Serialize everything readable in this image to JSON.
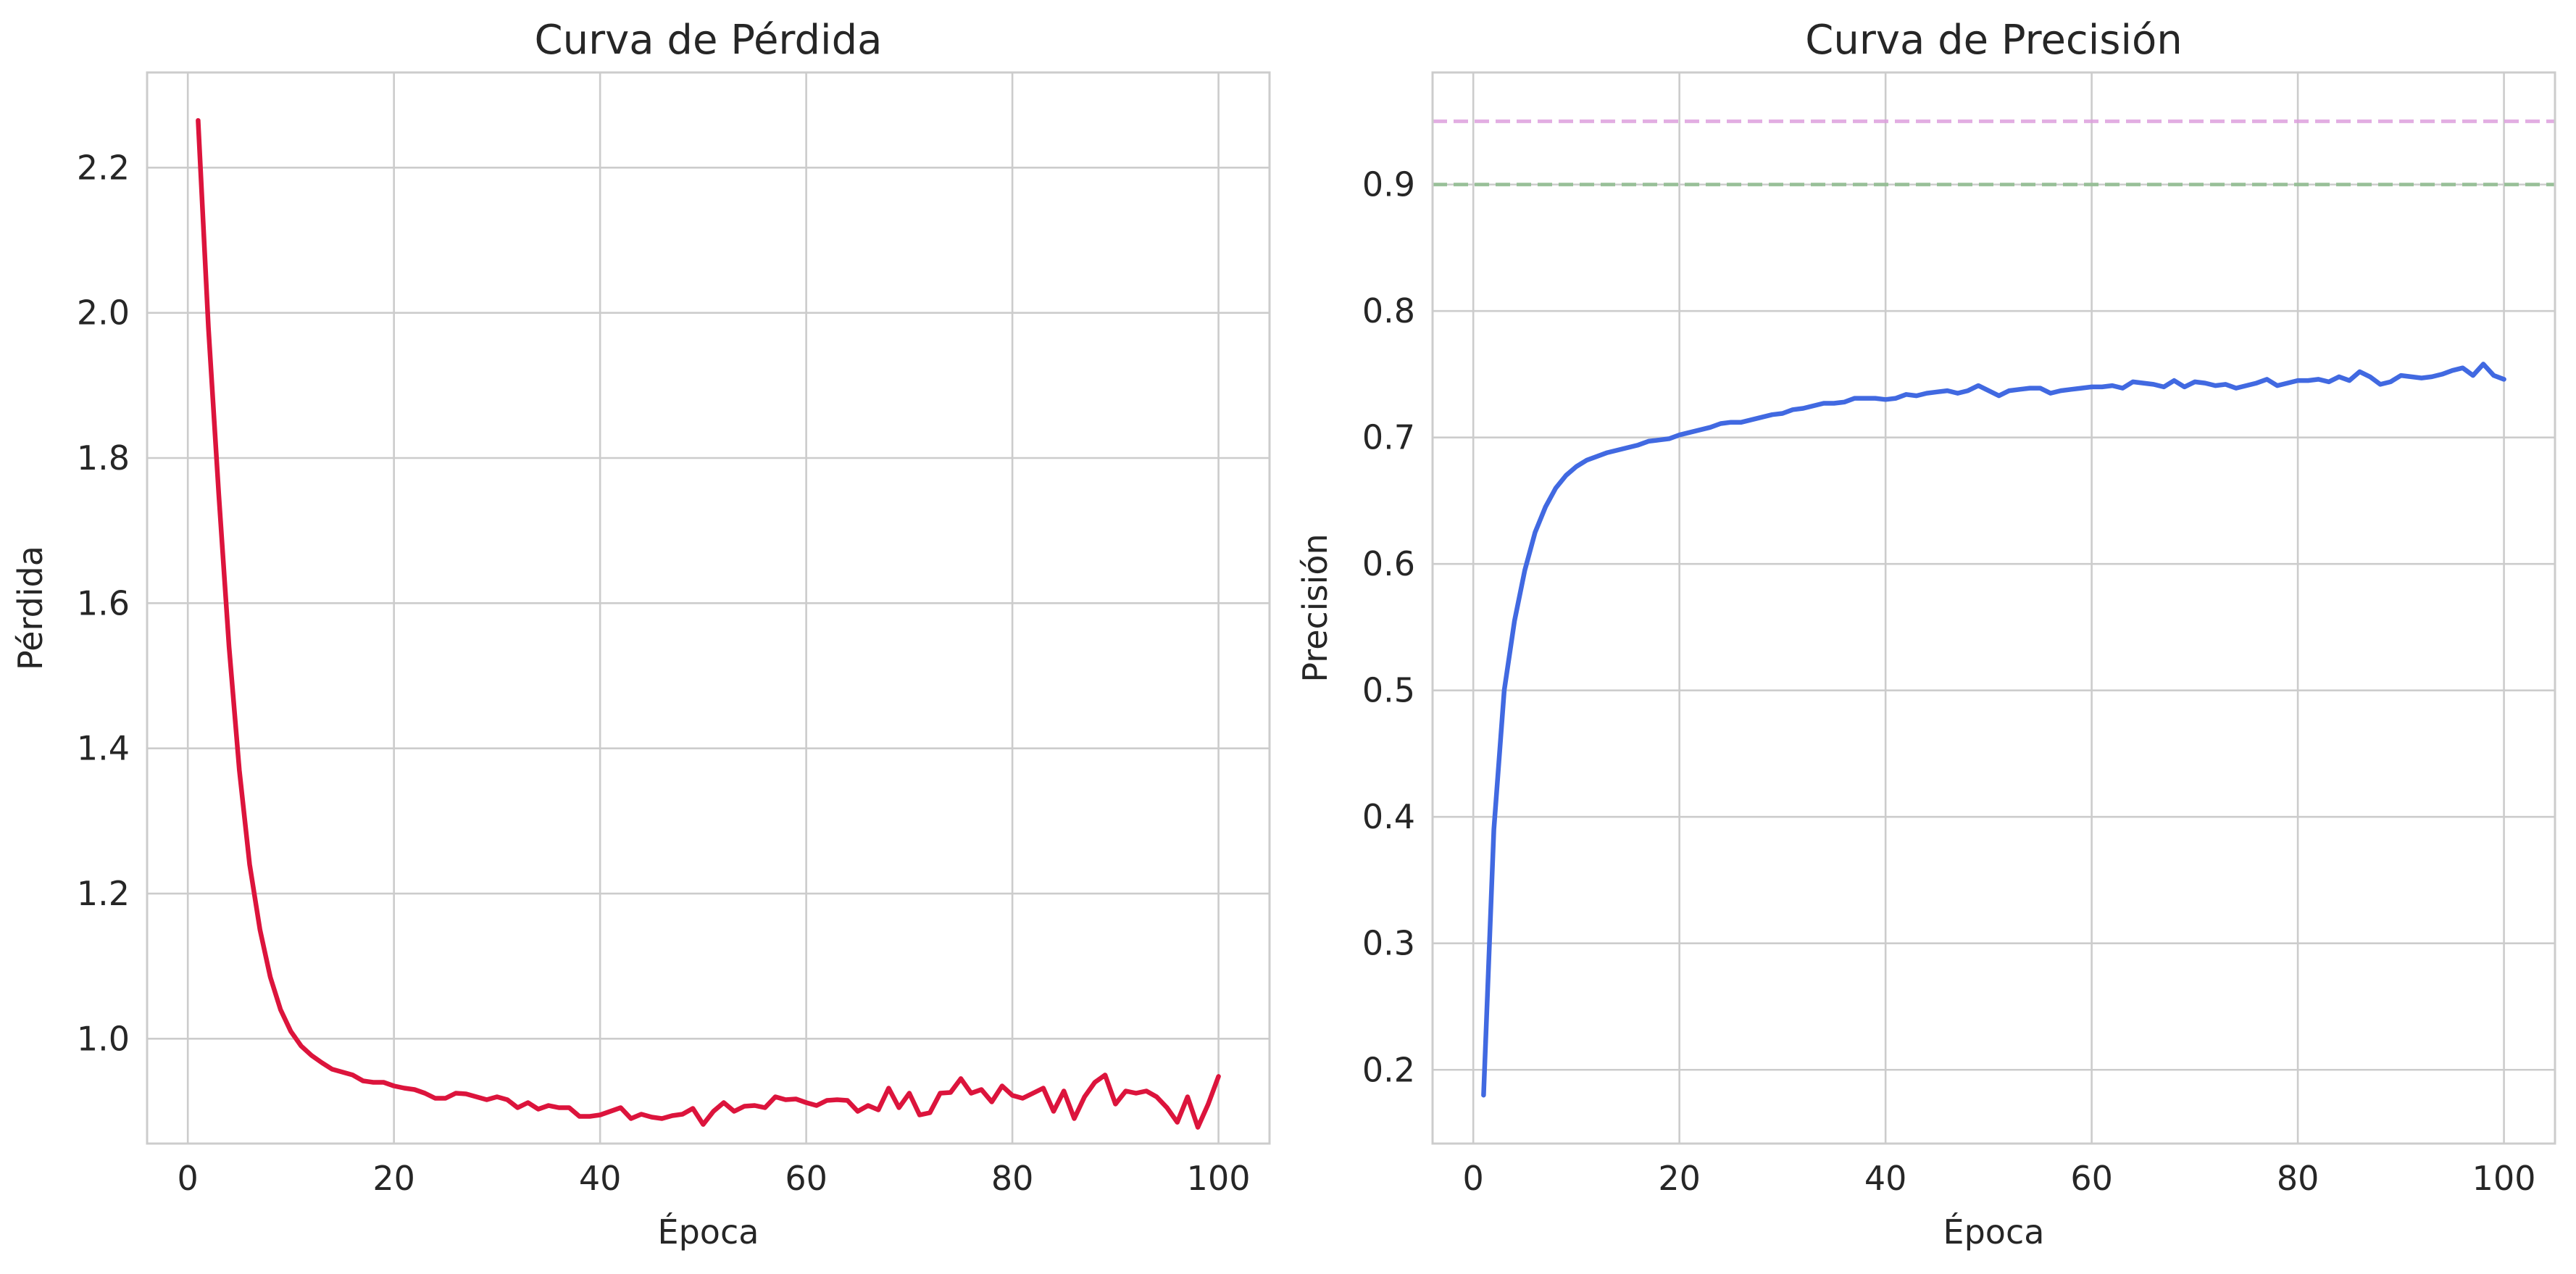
{
  "chart_data": [
    {
      "type": "line",
      "title": "Curva de Pérdida",
      "xlabel": "Época",
      "ylabel": "Pérdida",
      "xlim": [
        -3.95,
        104.95
      ],
      "ylim": [
        0.8556,
        2.3311
      ],
      "xticks": [
        0,
        20,
        40,
        60,
        80,
        100
      ],
      "yticks": [
        1.0,
        1.2,
        1.4,
        1.6,
        1.8,
        2.0,
        2.2
      ],
      "grid": true,
      "series": [
        {
          "color": "#dc143c",
          "x": [
            1,
            2,
            3,
            4,
            5,
            6,
            7,
            8,
            9,
            10,
            11,
            12,
            13,
            14,
            15,
            16,
            17,
            18,
            19,
            20,
            21,
            22,
            23,
            24,
            25,
            26,
            27,
            28,
            29,
            30,
            31,
            32,
            33,
            34,
            35,
            36,
            37,
            38,
            39,
            40,
            41,
            42,
            43,
            44,
            45,
            46,
            47,
            48,
            49,
            50,
            51,
            52,
            53,
            54,
            55,
            56,
            57,
            58,
            59,
            60,
            61,
            62,
            63,
            64,
            65,
            66,
            67,
            68,
            69,
            70,
            71,
            72,
            73,
            74,
            75,
            76,
            77,
            78,
            79,
            80,
            81,
            82,
            83,
            84,
            85,
            86,
            87,
            88,
            89,
            90,
            91,
            92,
            93,
            94,
            95,
            96,
            97,
            98,
            99,
            100
          ],
          "y": [
            2.265,
            1.98,
            1.75,
            1.54,
            1.37,
            1.24,
            1.15,
            1.085,
            1.04,
            1.01,
            0.99,
            0.977,
            0.967,
            0.958,
            0.954,
            0.95,
            0.942,
            0.94,
            0.94,
            0.935,
            0.932,
            0.93,
            0.925,
            0.918,
            0.918,
            0.925,
            0.924,
            0.92,
            0.916,
            0.92,
            0.916,
            0.905,
            0.912,
            0.903,
            0.908,
            0.905,
            0.905,
            0.893,
            0.893,
            0.895,
            0.9,
            0.905,
            0.89,
            0.896,
            0.892,
            0.89,
            0.894,
            0.896,
            0.904,
            0.882,
            0.9,
            0.912,
            0.9,
            0.907,
            0.908,
            0.905,
            0.92,
            0.916,
            0.917,
            0.912,
            0.908,
            0.915,
            0.916,
            0.915,
            0.9,
            0.908,
            0.902,
            0.932,
            0.905,
            0.925,
            0.895,
            0.898,
            0.925,
            0.926,
            0.945,
            0.925,
            0.93,
            0.913,
            0.935,
            0.922,
            0.918,
            0.925,
            0.932,
            0.9,
            0.928,
            0.89,
            0.92,
            0.94,
            0.95,
            0.91,
            0.928,
            0.925,
            0.928,
            0.92,
            0.905,
            0.885,
            0.92,
            0.878,
            0.91,
            0.948
          ]
        }
      ]
    },
    {
      "type": "line",
      "title": "Curva de Precisión",
      "xlabel": "Época",
      "ylabel": "Precisión",
      "xlim": [
        -3.95,
        104.95
      ],
      "ylim": [
        0.1417,
        0.9886
      ],
      "xticks": [
        0,
        20,
        40,
        60,
        80,
        100
      ],
      "yticks": [
        0.2,
        0.3,
        0.4,
        0.5,
        0.6,
        0.7,
        0.8,
        0.9
      ],
      "grid": true,
      "reference_lines": [
        {
          "y": 0.95,
          "color": "#dda0dd",
          "style": "dashed"
        },
        {
          "y": 0.9,
          "color": "#8fbc8f",
          "style": "dashed"
        }
      ],
      "series": [
        {
          "color": "#4169e1",
          "x": [
            1,
            2,
            3,
            4,
            5,
            6,
            7,
            8,
            9,
            10,
            11,
            12,
            13,
            14,
            15,
            16,
            17,
            18,
            19,
            20,
            21,
            22,
            23,
            24,
            25,
            26,
            27,
            28,
            29,
            30,
            31,
            32,
            33,
            34,
            35,
            36,
            37,
            38,
            39,
            40,
            41,
            42,
            43,
            44,
            45,
            46,
            47,
            48,
            49,
            50,
            51,
            52,
            53,
            54,
            55,
            56,
            57,
            58,
            59,
            60,
            61,
            62,
            63,
            64,
            65,
            66,
            67,
            68,
            69,
            70,
            71,
            72,
            73,
            74,
            75,
            76,
            77,
            78,
            79,
            80,
            81,
            82,
            83,
            84,
            85,
            86,
            87,
            88,
            89,
            90,
            91,
            92,
            93,
            94,
            95,
            96,
            97,
            98,
            99,
            100
          ],
          "y": [
            0.18,
            0.39,
            0.5,
            0.555,
            0.595,
            0.625,
            0.645,
            0.66,
            0.67,
            0.677,
            0.682,
            0.685,
            0.688,
            0.69,
            0.692,
            0.694,
            0.697,
            0.698,
            0.699,
            0.702,
            0.704,
            0.706,
            0.708,
            0.711,
            0.712,
            0.712,
            0.714,
            0.716,
            0.718,
            0.719,
            0.722,
            0.723,
            0.725,
            0.727,
            0.727,
            0.728,
            0.731,
            0.731,
            0.731,
            0.73,
            0.731,
            0.734,
            0.733,
            0.735,
            0.736,
            0.737,
            0.735,
            0.737,
            0.741,
            0.737,
            0.733,
            0.737,
            0.738,
            0.739,
            0.739,
            0.735,
            0.737,
            0.738,
            0.739,
            0.74,
            0.74,
            0.741,
            0.739,
            0.744,
            0.743,
            0.742,
            0.74,
            0.745,
            0.74,
            0.744,
            0.743,
            0.741,
            0.742,
            0.739,
            0.741,
            0.743,
            0.746,
            0.741,
            0.743,
            0.745,
            0.745,
            0.746,
            0.744,
            0.748,
            0.745,
            0.752,
            0.748,
            0.742,
            0.744,
            0.749,
            0.748,
            0.747,
            0.748,
            0.75,
            0.753,
            0.755,
            0.749,
            0.758,
            0.749,
            0.746
          ]
        }
      ]
    }
  ]
}
